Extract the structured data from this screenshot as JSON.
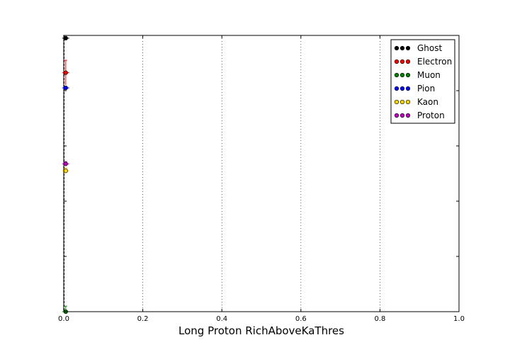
{
  "chart_data": {
    "type": "scatter",
    "title": "",
    "xlabel": "Long Proton RichAboveKaThres",
    "ylabel": "",
    "xlim": [
      0.0,
      1.0
    ],
    "ylim": [
      0.0,
      1.0
    ],
    "x_ticks": [
      0.0,
      0.2,
      0.4,
      0.6,
      0.8,
      1.0
    ],
    "x_tick_labels": [
      "0.0",
      "0.2",
      "0.4",
      "0.6",
      "0.8",
      "1.0"
    ],
    "y_tick_labels_shown": false,
    "grid": "x-dotted",
    "legend_position": "top-right",
    "series": [
      {
        "name": "Ghost",
        "color": "#000000",
        "points": [
          {
            "x": 0.005,
            "y": 0.99,
            "yerr": 0.005
          }
        ]
      },
      {
        "name": "Electron",
        "color": "#ff0000",
        "points": [
          {
            "x": 0.005,
            "y": 0.865,
            "yerr": 0.045
          }
        ]
      },
      {
        "name": "Muon",
        "color": "#008000",
        "points": [
          {
            "x": 0.005,
            "y": 0.0,
            "yerr": 0.02
          }
        ]
      },
      {
        "name": "Pion",
        "color": "#0000ff",
        "points": [
          {
            "x": 0.005,
            "y": 0.81,
            "yerr": 0.005
          }
        ]
      },
      {
        "name": "Kaon",
        "color": "#ffd700",
        "points": [
          {
            "x": 0.005,
            "y": 0.51,
            "yerr": 0.01
          }
        ]
      },
      {
        "name": "Proton",
        "color": "#bf00bf",
        "points": [
          {
            "x": 0.005,
            "y": 0.535,
            "yerr": 0.008
          }
        ]
      }
    ]
  }
}
